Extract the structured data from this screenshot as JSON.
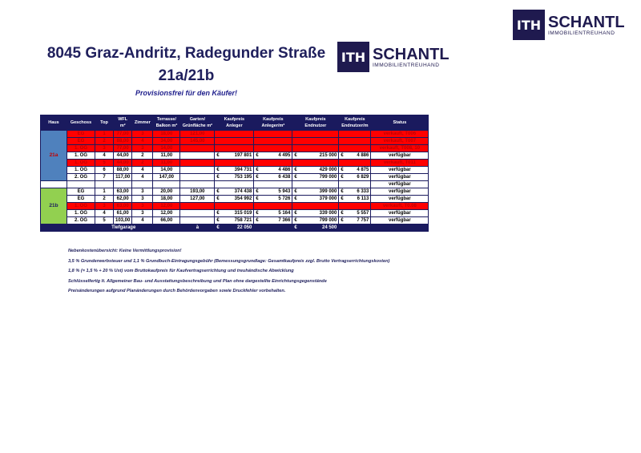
{
  "logo": {
    "mark": "ITH",
    "name": "SCHANTL",
    "tagline": "IMMOBILIENTREUHAND"
  },
  "title": "8045 Graz-Andritz, Radegunder Straße",
  "subtitle": "21a/21b",
  "provision": "Provisionsfrei für den Käufer!",
  "colors": {
    "header": "#1a1a5e",
    "haus_21a": "#4f81bd",
    "haus_21b": "#92d050",
    "sold": "#ff0000"
  },
  "table": {
    "headers": [
      "Haus",
      "Geschoss",
      "Top",
      "WFL m²",
      "Zimmer",
      "Terrasse/ Balkon m²",
      "Garten/ Grünfläche m²",
      "Kaufpreis Anleger",
      "Kaufpreis Anleger/m²",
      "Kaufpreis Endnutzer",
      "Kaufpreis Endnutzer/m",
      "Status"
    ],
    "groups": [
      {
        "haus": "21a",
        "rows": [
          [
            "EG",
            "1",
            "77,00",
            "3",
            "18,00",
            "121,00",
            "",
            "",
            "",
            "",
            "verkauft, T006"
          ],
          [
            "EG",
            "2",
            "88,00",
            "4",
            "34,00",
            "145,00",
            "",
            "",
            "",
            "",
            "verkauft, T007"
          ],
          [
            "1. OG",
            "3",
            "77,00",
            "3",
            "14,00",
            "",
            "",
            "",
            "",
            "",
            "verkauft, T008, 10"
          ],
          [
            "1. OG",
            "4",
            "44,00",
            "2",
            "11,00",
            "",
            "197 801",
            "4 495",
            "215 000",
            "4 886",
            "verfügbar"
          ],
          [
            "1. OG",
            "5",
            "44,00",
            "2",
            "11,00",
            "",
            "",
            "",
            "",
            "",
            "verkauft, T011"
          ],
          [
            "1. OG",
            "6",
            "88,00",
            "4",
            "14,00",
            "",
            "394 731",
            "4 486",
            "429 000",
            "4 875",
            "verfügbar"
          ],
          [
            "2. OG",
            "7",
            "117,00",
            "4",
            "147,00",
            "",
            "753 195",
            "6 438",
            "799 000",
            "6 829",
            "verfügbar"
          ]
        ]
      },
      {
        "haus": "",
        "rows": [
          [
            "",
            "",
            "",
            "",
            "",
            "",
            "",
            "",
            "",
            "",
            "verfügbar"
          ]
        ]
      },
      {
        "haus": "21b",
        "rows": [
          [
            "EG",
            "1",
            "63,00",
            "3",
            "20,00",
            "193,00",
            "374 438",
            "5 943",
            "399 000",
            "6 333",
            "verfügbar"
          ],
          [
            "EG",
            "2",
            "62,00",
            "3",
            "18,00",
            "127,00",
            "354 992",
            "5 726",
            "379 000",
            "6 113",
            "verfügbar"
          ],
          [
            "1. OG",
            "3",
            "63,00",
            "3",
            "12,00",
            "",
            "",
            "",
            "",
            "",
            "verkauft, T0.08"
          ],
          [
            "1. OG",
            "4",
            "61,00",
            "3",
            "12,00",
            "",
            "315 019",
            "5 164",
            "339 000",
            "5 557",
            "verfügbar"
          ],
          [
            "2. OG",
            "5",
            "103,00",
            "4",
            "66,00",
            "",
            "758 721",
            "7 366",
            "799 000",
            "7 757",
            "verfügbar"
          ]
        ]
      }
    ],
    "currency": "€",
    "footer": {
      "label": "Tiefgarage",
      "a": "à",
      "anleger": "22 050",
      "endnutzer": "24 500"
    }
  },
  "notes": [
    "Nebenkostenübersicht:  Keine Vermittlungsprovision!",
    "3,5 % Grunderwerbsteuer und 1,1 % Grundbuch-Eintragungsgebühr (Bemessungsgrundlage: Gesamtkaufpreis zzgl. Brutto Vertragserrichtungskosten)",
    "1,8 % (= 1,5 % + 20 % Ust) vom Bruttokaufpreis für Kaufvertragserrichtung und treuhändische Abwicklung",
    "Schlüsselfertig lt. Allgemeiner Bau- und Ausstattungsbeschreibung und Plan ohne dargestellte Einrichtungsgegenstände",
    "Preisänderungen aufgrund Planänderungen durch Behördenvorgaben sowie Druckfehler vorbehalten."
  ]
}
